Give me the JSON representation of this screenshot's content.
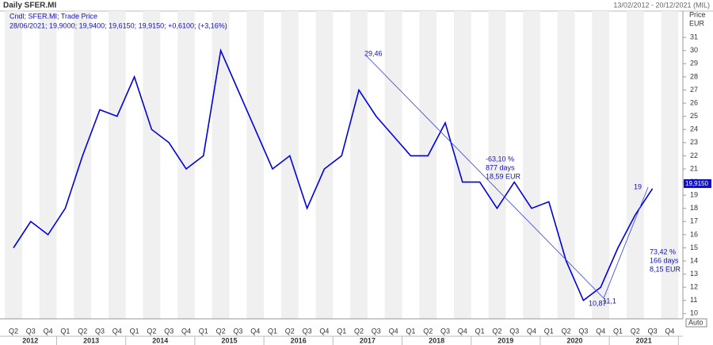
{
  "chart_data": {
    "type": "line",
    "title": "Daily SFER.MI",
    "date_range": "13/02/2012 - 20/12/2021 (MIL)",
    "legend_lines": [
      "Cndl; SFER.MI; Trade Price",
      "28/06/2021; 19,9000; 19,9400; 19,6150; 19,9150; +0,6100; (+3,16%)"
    ],
    "y_axis_label": "Price",
    "y_axis_unit": "EUR",
    "categories": [
      "Q2",
      "Q3",
      "Q4",
      "Q1",
      "Q2",
      "Q3",
      "Q4",
      "Q1",
      "Q2",
      "Q3",
      "Q4",
      "Q1",
      "Q2",
      "Q3",
      "Q4",
      "Q1",
      "Q2",
      "Q3",
      "Q4",
      "Q1",
      "Q2",
      "Q3",
      "Q4",
      "Q1",
      "Q2",
      "Q3",
      "Q4",
      "Q1",
      "Q2",
      "Q3",
      "Q4",
      "Q1",
      "Q2",
      "Q3",
      "Q4",
      "Q1",
      "Q2",
      "Q3",
      "Q4"
    ],
    "years": [
      "2012",
      "2013",
      "2014",
      "2015",
      "2016",
      "2017",
      "2018",
      "2019",
      "2020",
      "2021"
    ],
    "values": [
      15,
      17,
      16,
      18,
      22,
      25.5,
      25,
      28,
      24,
      23,
      21,
      22,
      30,
      27,
      24,
      21,
      22,
      18,
      21,
      22,
      27,
      25,
      23.5,
      22,
      22,
      24.5,
      20,
      20,
      18,
      20,
      18,
      18.5,
      14,
      11,
      12,
      15,
      17.5,
      19.5,
      null
    ],
    "color": "#0000e0",
    "ylim": [
      9.6,
      33.0
    ],
    "yticks": [
      10,
      11,
      12,
      13,
      14,
      15,
      16,
      17,
      18,
      19,
      20,
      21,
      22,
      23,
      24,
      25,
      26,
      27,
      28,
      29,
      30,
      31
    ],
    "last_price_label": "19,9150",
    "annotations": [
      "29,46",
      "-63,10 %",
      "877 days",
      "18,59 EUR",
      "10,87",
      "11,1",
      "19",
      "73,42 %",
      "166 days",
      "8,15 EUR"
    ],
    "auto_label": "Auto"
  }
}
